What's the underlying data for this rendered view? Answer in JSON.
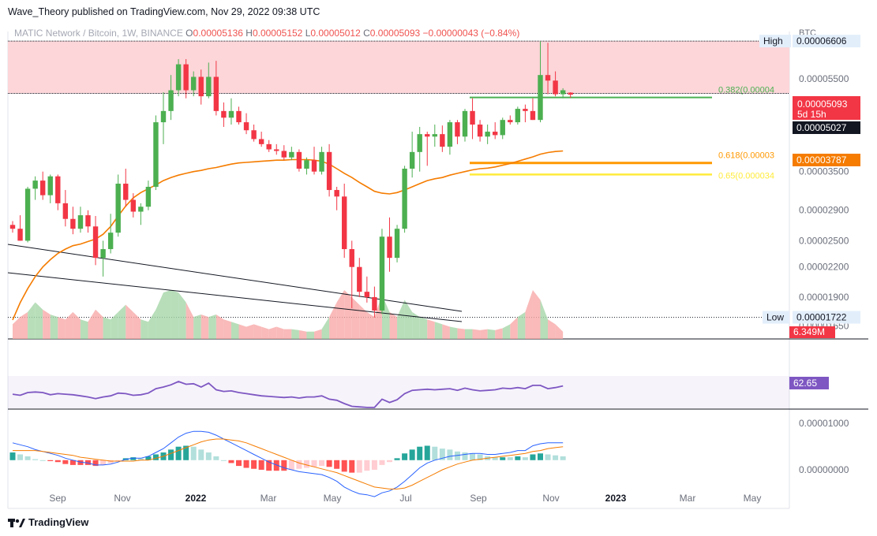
{
  "header": {
    "published": "Wave_Theory published on TradingView.com, Nov 29, 2022 09:38 UTC"
  },
  "legend": {
    "symbol": "MATIC Network / Bitcoin, 1W, BINANCE",
    "open_label": "O",
    "open": "0.00005136",
    "high_label": "H",
    "high": "0.00005152",
    "low_label": "L",
    "low": "0.00005012",
    "close_label": "C",
    "close": "0.00005093",
    "change": "−0.00000043 (−0.84%)"
  },
  "footer": {
    "brand": "TradingView"
  },
  "colors": {
    "up": "#4caf50",
    "down": "#f23645",
    "ma": "#f57c00",
    "rsi": "#7e57c2",
    "zone": "#fcd4d7",
    "fib382": "#4caf50",
    "fib618": "#ff9800",
    "fib65": "#ffeb3b"
  },
  "chart_data": {
    "type": "candlestick",
    "price_axis": {
      "unit": "BTC",
      "ticks": [
        "0.00006606",
        "0.00005500",
        "0.00003500",
        "0.00002900",
        "0.00002500",
        "0.00002200",
        "0.00001900",
        "0.00001650"
      ],
      "range": [
        1.55e-05,
        6.92e-05
      ]
    },
    "time_axis": {
      "labels": [
        "Sep",
        "Nov",
        "2022",
        "Mar",
        "May",
        "Jul",
        "Sep",
        "Nov",
        "2023",
        "Mar",
        "May"
      ]
    },
    "markers": {
      "high": {
        "label": "High",
        "value": "0.00006606"
      },
      "low": {
        "label": "Low",
        "value": "0.00001722"
      },
      "last_price": "0.00005093",
      "countdown": "5d 15h",
      "crosshair": "0.00005027",
      "ma_value": "0.00003787",
      "volume_label": "6.349M"
    },
    "fibs": [
      {
        "label": "0.382(0.00004",
        "value": 5.02e-05
      },
      {
        "label": "0.618(0.00003",
        "value": 3.65e-05
      },
      {
        "label": "0.65(0.000034",
        "value": 3.45e-05
      }
    ],
    "candles": [
      [
        2.7e-05,
        2.75e-05,
        2.6e-05,
        2.65e-05
      ],
      [
        2.65e-05,
        2.83e-05,
        2.5e-05,
        2.5e-05
      ],
      [
        2.5e-05,
        3.25e-05,
        2.48e-05,
        3.22e-05
      ],
      [
        3.22e-05,
        3.42e-05,
        3.05e-05,
        3.35e-05
      ],
      [
        3.35e-05,
        3.5e-05,
        3.05e-05,
        3.12e-05
      ],
      [
        3.12e-05,
        3.45e-05,
        3e-05,
        3.42e-05
      ],
      [
        3.42e-05,
        3.45e-05,
        2.9e-05,
        3e-05
      ],
      [
        3e-05,
        3.2e-05,
        2.68e-05,
        2.78e-05
      ],
      [
        2.78e-05,
        2.95e-05,
        2.58e-05,
        2.65e-05
      ],
      [
        2.65e-05,
        2.95e-05,
        2.6e-05,
        2.83e-05
      ],
      [
        2.83e-05,
        2.9e-05,
        2.6e-05,
        2.68e-05
      ],
      [
        2.68e-05,
        2.82e-05,
        2.22e-05,
        2.3e-05
      ],
      [
        2.3e-05,
        2.5e-05,
        2.1e-05,
        2.4e-05
      ],
      [
        2.4e-05,
        2.85e-05,
        2.35e-05,
        2.6e-05
      ],
      [
        2.6e-05,
        3.45e-05,
        2.55e-05,
        3.3e-05
      ],
      [
        3.3e-05,
        3.55e-05,
        2.95e-05,
        3.05e-05
      ],
      [
        3.05e-05,
        3.15e-05,
        2.8e-05,
        2.88e-05
      ],
      [
        2.88e-05,
        3e-05,
        2.7e-05,
        2.95e-05
      ],
      [
        2.95e-05,
        3.35e-05,
        2.9e-05,
        3.25e-05
      ],
      [
        3.25e-05,
        4.6e-05,
        3.2e-05,
        4.45e-05
      ],
      [
        4.45e-05,
        5.15e-05,
        4e-05,
        4.7e-05
      ],
      [
        4.7e-05,
        5.6e-05,
        4.5e-05,
        5.2e-05
      ],
      [
        5.2e-05,
        6.05e-05,
        5.05e-05,
        5.9e-05
      ],
      [
        5.9e-05,
        6.05e-05,
        5e-05,
        5.2e-05
      ],
      [
        5.2e-05,
        5.7e-05,
        5.05e-05,
        5.55e-05
      ],
      [
        5.55e-05,
        5.75e-05,
        4.85e-05,
        5.05e-05
      ],
      [
        5.05e-05,
        5.95e-05,
        5e-05,
        5.55e-05
      ],
      [
        5.55e-05,
        6e-05,
        4.6e-05,
        4.7e-05
      ],
      [
        4.7e-05,
        4.9e-05,
        4.35e-05,
        4.55e-05
      ],
      [
        4.55e-05,
        5e-05,
        4.4e-05,
        4.7e-05
      ],
      [
        4.7e-05,
        4.8e-05,
        4.4e-05,
        4.45e-05
      ],
      [
        4.45e-05,
        4.65e-05,
        4.2e-05,
        4.28e-05
      ],
      [
        4.28e-05,
        4.4e-05,
        4.05e-05,
        4.1e-05
      ],
      [
        4.1e-05,
        4.25e-05,
        3.95e-05,
        4e-05
      ],
      [
        4e-05,
        4.08e-05,
        3.85e-05,
        3.9e-05
      ],
      [
        3.9e-05,
        4e-05,
        3.8e-05,
        3.87e-05
      ],
      [
        3.87e-05,
        3.98e-05,
        3.7e-05,
        3.75e-05
      ],
      [
        3.75e-05,
        3.95e-05,
        3.7e-05,
        3.85e-05
      ],
      [
        3.85e-05,
        3.9e-05,
        3.5e-05,
        3.55e-05
      ],
      [
        3.55e-05,
        3.75e-05,
        3.45e-05,
        3.7e-05
      ],
      [
        3.7e-05,
        3.95e-05,
        3.45e-05,
        3.5e-05
      ],
      [
        3.5e-05,
        3.95e-05,
        3.45e-05,
        3.85e-05
      ],
      [
        3.85e-05,
        4e-05,
        3.1e-05,
        3.2e-05
      ],
      [
        3.2e-05,
        3.25e-05,
        2.9e-05,
        3.1e-05
      ],
      [
        3.1e-05,
        3.3e-05,
        2.3e-05,
        2.4e-05
      ],
      [
        2.4e-05,
        2.5e-05,
        1.8e-05,
        2.2e-05
      ],
      [
        2.2e-05,
        2.3e-05,
        1.9e-05,
        1.95e-05
      ],
      [
        1.95e-05,
        2.1e-05,
        1.85e-05,
        1.9e-05
      ],
      [
        1.9e-05,
        2e-05,
        1.72e-05,
        1.78e-05
      ],
      [
        1.78e-05,
        2.65e-05,
        1.75e-05,
        2.55e-05
      ],
      [
        2.55e-05,
        2.8e-05,
        2.15e-05,
        2.3e-05
      ],
      [
        2.3e-05,
        2.7e-05,
        2.25e-05,
        2.65e-05
      ],
      [
        2.65e-05,
        3.6e-05,
        2.6e-05,
        3.55e-05
      ],
      [
        3.55e-05,
        4.25e-05,
        3.4e-05,
        3.85e-05
      ],
      [
        3.85e-05,
        4.35e-05,
        3.5e-05,
        4.2e-05
      ],
      [
        4.2e-05,
        4.25e-05,
        3.6e-05,
        4.15e-05
      ],
      [
        4.15e-05,
        4.4e-05,
        3.95e-05,
        4.2e-05
      ],
      [
        4.2e-05,
        4.38e-05,
        3.85e-05,
        3.95e-05
      ],
      [
        3.95e-05,
        4.5e-05,
        3.8e-05,
        4.45e-05
      ],
      [
        4.45e-05,
        4.5e-05,
        4e-05,
        4.15e-05
      ],
      [
        4.15e-05,
        4.75e-05,
        4.05e-05,
        4.7e-05
      ],
      [
        4.7e-05,
        5e-05,
        4.1e-05,
        4.4e-05
      ],
      [
        4.4e-05,
        4.5e-05,
        4.05e-05,
        4.15e-05
      ],
      [
        4.15e-05,
        4.4e-05,
        4e-05,
        4.25e-05
      ],
      [
        4.25e-05,
        4.45e-05,
        4.1e-05,
        4.18e-05
      ],
      [
        4.18e-05,
        4.55e-05,
        4.1e-05,
        4.5e-05
      ],
      [
        4.5e-05,
        4.6e-05,
        4.4e-05,
        4.45e-05
      ],
      [
        4.45e-05,
        4.8e-05,
        4.4e-05,
        4.75e-05
      ],
      [
        4.75e-05,
        4.85e-05,
        4.45e-05,
        4.7e-05
      ],
      [
        4.7e-05,
        5e-05,
        4.5e-05,
        4.5e-05
      ],
      [
        4.5e-05,
        6.6e-05,
        4.45e-05,
        5.6e-05
      ],
      [
        5.6e-05,
        6.55e-05,
        5.1e-05,
        5.45e-05
      ],
      [
        5.45e-05,
        5.7e-05,
        5.05e-05,
        5.1e-05
      ],
      [
        5.1e-05,
        5.25e-05,
        5e-05,
        5.2e-05
      ],
      [
        5.14e-05,
        5.15e-05,
        5.01e-05,
        5.09e-05
      ]
    ],
    "ma": [
      1.7e-05,
      1.85e-05,
      1.98e-05,
      2.1e-05,
      2.2e-05,
      2.28e-05,
      2.35e-05,
      2.4e-05,
      2.44e-05,
      2.46e-05,
      2.49e-05,
      2.52e-05,
      2.58e-05,
      2.68e-05,
      2.82e-05,
      2.96e-05,
      3.08e-05,
      3.16e-05,
      3.22e-05,
      3.28e-05,
      3.35e-05,
      3.4e-05,
      3.44e-05,
      3.47e-05,
      3.5e-05,
      3.52e-05,
      3.55e-05,
      3.57e-05,
      3.6e-05,
      3.63e-05,
      3.65e-05,
      3.66e-05,
      3.67e-05,
      3.68e-05,
      3.69e-05,
      3.7e-05,
      3.7e-05,
      3.71e-05,
      3.71e-05,
      3.71e-05,
      3.7e-05,
      3.68e-05,
      3.63e-05,
      3.55e-05,
      3.47e-05,
      3.4e-05,
      3.32e-05,
      3.25e-05,
      3.18e-05,
      3.15e-05,
      3.14e-05,
      3.16e-05,
      3.2e-05,
      3.25e-05,
      3.3e-05,
      3.35e-05,
      3.38e-05,
      3.4e-05,
      3.44e-05,
      3.47e-05,
      3.5e-05,
      3.53e-05,
      3.55e-05,
      3.56e-05,
      3.58e-05,
      3.61e-05,
      3.64e-05,
      3.68e-05,
      3.72e-05,
      3.76e-05,
      3.81e-05,
      3.84e-05,
      3.86e-05,
      3.87e-05
    ],
    "volume": [
      0.3,
      0.45,
      0.55,
      0.75,
      0.6,
      0.5,
      0.45,
      0.4,
      0.55,
      0.4,
      0.35,
      0.6,
      0.45,
      0.4,
      0.55,
      0.7,
      0.55,
      0.4,
      0.35,
      0.6,
      0.95,
      1.0,
      0.95,
      0.75,
      0.45,
      0.5,
      0.45,
      0.5,
      0.4,
      0.35,
      0.3,
      0.25,
      0.3,
      0.25,
      0.2,
      0.25,
      0.2,
      0.2,
      0.18,
      0.15,
      0.15,
      0.2,
      0.45,
      0.75,
      1.0,
      0.85,
      0.7,
      0.55,
      0.45,
      0.9,
      0.55,
      0.45,
      0.8,
      0.55,
      0.45,
      0.4,
      0.35,
      0.3,
      0.25,
      0.22,
      0.2,
      0.2,
      0.18,
      0.2,
      0.18,
      0.22,
      0.3,
      0.45,
      0.55,
      1.0,
      0.8,
      0.4,
      0.3,
      0.15
    ],
    "rsi": {
      "current": "62.65",
      "values": [
        47,
        45,
        50,
        51,
        50,
        46,
        48,
        47,
        46,
        44,
        42,
        39,
        42,
        44,
        49,
        48,
        45,
        46,
        49,
        57,
        60,
        64,
        70,
        65,
        66,
        60,
        67,
        55,
        52,
        53,
        50,
        48,
        46,
        44,
        43,
        42,
        41,
        42,
        40,
        42,
        42,
        44,
        38,
        36,
        30,
        25,
        24,
        23,
        23,
        38,
        32,
        37,
        48,
        54,
        55,
        56,
        55,
        56,
        57,
        54,
        58,
        55,
        53,
        54,
        55,
        58,
        57,
        59,
        57,
        63,
        63,
        57,
        59,
        62
      ],
      "range": [
        20,
        80
      ]
    },
    "macd": {
      "macd_line": [
        0.18,
        0.16,
        0.14,
        0.11,
        0.09,
        0.07,
        0.05,
        0.02,
        0.0,
        -0.02,
        -0.03,
        -0.05,
        -0.05,
        -0.04,
        -0.02,
        0.01,
        0.02,
        0.02,
        0.04,
        0.08,
        0.12,
        0.18,
        0.24,
        0.28,
        0.3,
        0.3,
        0.29,
        0.26,
        0.22,
        0.18,
        0.14,
        0.1,
        0.06,
        0.02,
        -0.02,
        -0.05,
        -0.08,
        -0.1,
        -0.12,
        -0.13,
        -0.14,
        -0.15,
        -0.18,
        -0.22,
        -0.28,
        -0.32,
        -0.35,
        -0.36,
        -0.38,
        -0.34,
        -0.32,
        -0.28,
        -0.22,
        -0.15,
        -0.08,
        -0.03,
        0.0,
        0.02,
        0.04,
        0.05,
        0.06,
        0.07,
        0.07,
        0.06,
        0.06,
        0.07,
        0.08,
        0.1,
        0.1,
        0.15,
        0.17,
        0.18,
        0.18,
        0.18
      ],
      "signal_line": [
        0.1,
        0.1,
        0.1,
        0.1,
        0.09,
        0.08,
        0.07,
        0.06,
        0.05,
        0.03,
        0.02,
        0.01,
        0.0,
        -0.01,
        -0.01,
        -0.01,
        -0.01,
        0.0,
        0.0,
        0.02,
        0.04,
        0.07,
        0.1,
        0.13,
        0.16,
        0.19,
        0.21,
        0.22,
        0.22,
        0.21,
        0.2,
        0.18,
        0.15,
        0.12,
        0.09,
        0.06,
        0.03,
        0.0,
        -0.03,
        -0.05,
        -0.07,
        -0.09,
        -0.11,
        -0.13,
        -0.16,
        -0.19,
        -0.22,
        -0.25,
        -0.28,
        -0.29,
        -0.3,
        -0.3,
        -0.29,
        -0.26,
        -0.22,
        -0.18,
        -0.14,
        -0.1,
        -0.07,
        -0.04,
        -0.02,
        0.0,
        0.01,
        0.02,
        0.03,
        0.04,
        0.05,
        0.06,
        0.07,
        0.09,
        0.1,
        0.12,
        0.13,
        0.14
      ],
      "range": [
        -0.42,
        0.4
      ],
      "ticks": [
        "0.00001000",
        "0.00000000"
      ]
    }
  }
}
